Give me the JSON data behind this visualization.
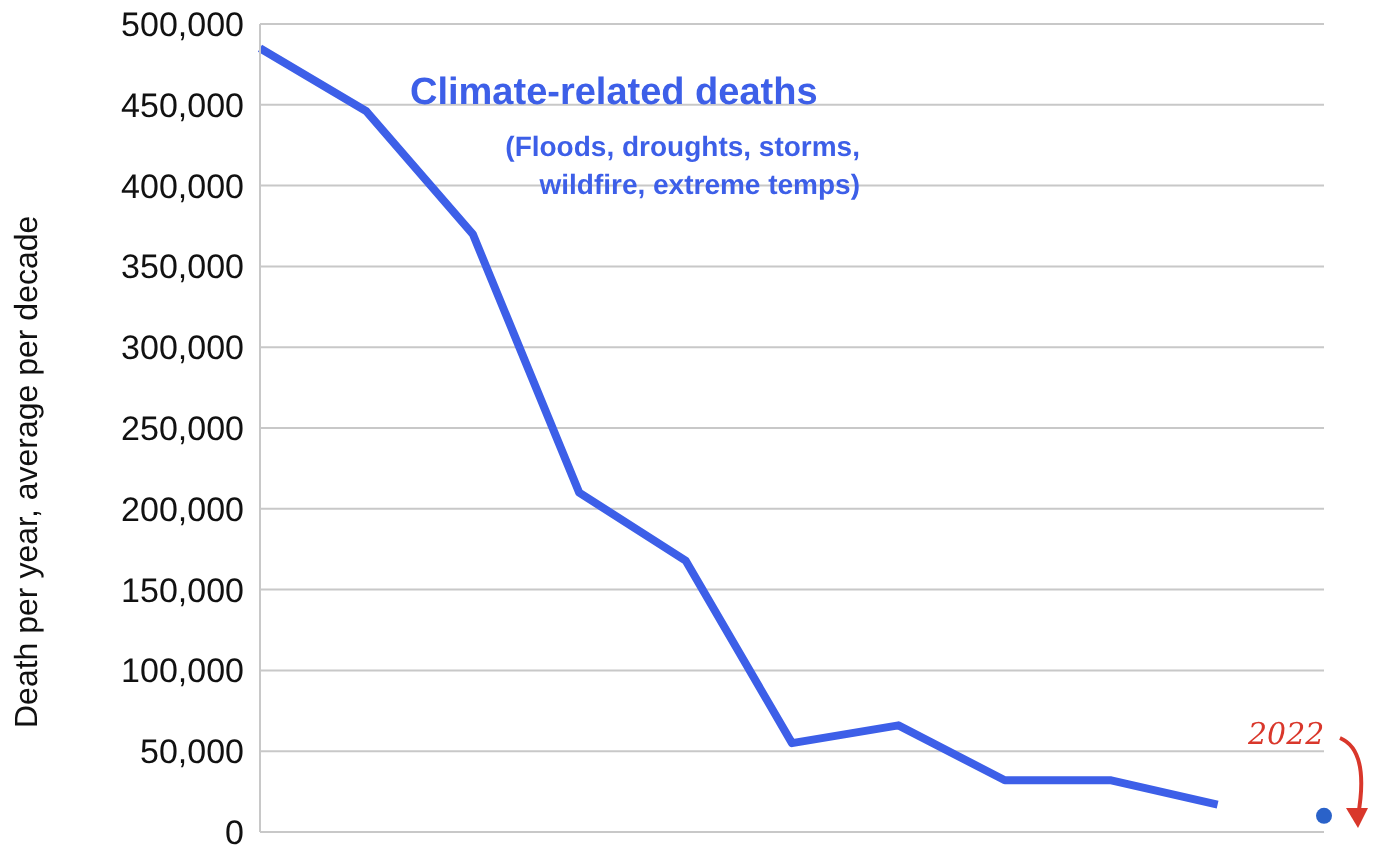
{
  "chart_data": {
    "type": "line",
    "title": "Climate-related deaths",
    "subtitle": "(Floods, droughts, storms, wildfire, extreme temps)",
    "ylabel": "Death per year, average per decade",
    "categories": [
      null,
      null,
      null,
      null,
      null,
      null,
      null,
      null,
      null,
      null,
      null
    ],
    "series": [
      {
        "color": "#3d5fe8",
        "values": [
          485000,
          446000,
          370000,
          210000,
          168000,
          55000,
          66000,
          32000,
          32000,
          17000,
          null
        ]
      },
      {
        "type": "scatter",
        "marker": "circle",
        "color": "#2a62c9",
        "values": [
          null,
          null,
          null,
          null,
          null,
          null,
          null,
          null,
          null,
          null,
          10000
        ]
      }
    ],
    "annotations": [
      "2022"
    ],
    "ylim": [
      0,
      500000
    ],
    "yticks": [
      0,
      {
        "value": 50000,
        "label": "50,000"
      },
      {
        "value": 100000,
        "label": "100,000"
      },
      {
        "value": 150000,
        "label": "150,000"
      },
      {
        "value": 200000,
        "label": "200,000"
      },
      {
        "value": 250000,
        "label": "250,000"
      },
      {
        "value": 300000,
        "label": "300,000"
      },
      {
        "value": 350000,
        "label": "350,000"
      },
      {
        "value": 400000,
        "label": "400,000"
      },
      {
        "value": 450000,
        "label": "450,000"
      },
      {
        "value": 500000,
        "label": "500,000"
      }
    ],
    "grid": "y",
    "tick_labels": "y",
    "marker": "none",
    "line_style": "solid"
  }
}
